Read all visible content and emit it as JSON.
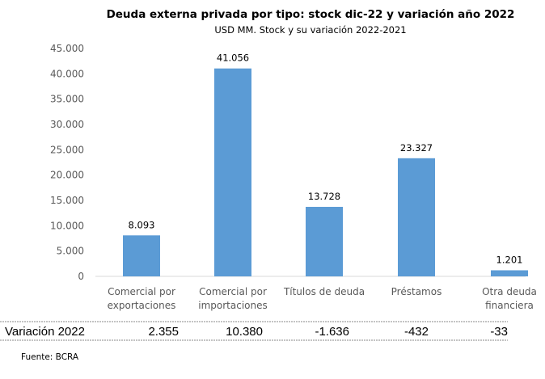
{
  "chart_data": {
    "type": "bar",
    "title": "Deuda externa privada por tipo: stock dic-22 y variación año 2022",
    "subtitle": "USD MM. Stock y su variación 2022-2021",
    "categories": [
      [
        "Comercial por",
        "exportaciones"
      ],
      [
        "Comercial por",
        "importaciones"
      ],
      [
        "Títulos de deuda"
      ],
      [
        "Préstamos"
      ],
      [
        "Otra deuda",
        "financiera"
      ]
    ],
    "values": [
      8093,
      41056,
      13728,
      23327,
      1201
    ],
    "value_labels": [
      "8.093",
      "41.056",
      "13.728",
      "23.327",
      "1.201"
    ],
    "ylim": [
      0,
      45000
    ],
    "yticks": [
      0,
      5000,
      10000,
      15000,
      20000,
      25000,
      30000,
      35000,
      40000,
      45000
    ],
    "ytick_labels": [
      "0",
      "5.000",
      "10.000",
      "15.000",
      "20.000",
      "25.000",
      "30.000",
      "35.000",
      "40.000",
      "45.000"
    ],
    "grid": false,
    "bar_color": "#5B9BD5",
    "table": {
      "row_label": "Variación 2022",
      "values": [
        "2.355",
        "10.380",
        "-1.636",
        "-432",
        "-33"
      ]
    },
    "source": "Fuente: BCRA"
  }
}
